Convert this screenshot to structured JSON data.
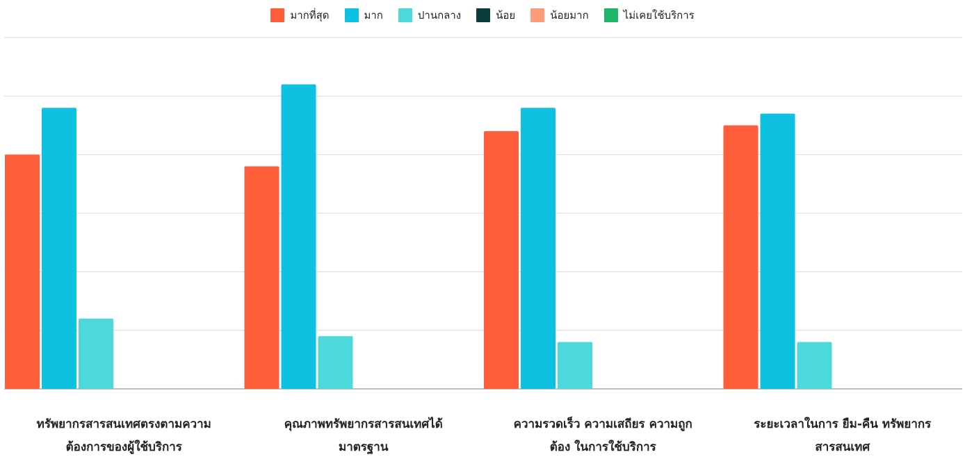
{
  "chart_data": {
    "type": "bar",
    "title": "",
    "xlabel": "",
    "ylabel": "",
    "ylim": [
      0,
      60
    ],
    "grid": true,
    "legend_position": "top-center",
    "categories": [
      "ทรัพยากรสารสนเทศตรงตามความต้องการของผู้ใช้บริการ",
      "คุณภาพทรัพยากรสารสนเทศได้มาตรฐาน",
      "ความรวดเร็ว ความเสถียร ความถูกต้อง ในการใช้บริการ",
      "ระยะเวลาในการ ยืม-คืน ทรัพยากรสารสนเทศ"
    ],
    "category_lines": [
      [
        "ทรัพยากรสารสนเทศตรงตามความ",
        "ต้องการของผู้ใช้บริการ"
      ],
      [
        "คุณภาพทรัพยากรสารสนเทศได้",
        "มาตรฐาน"
      ],
      [
        "ความรวดเร็ว ความเสถียร ความถูก",
        "ต้อง ในการใช้บริการ"
      ],
      [
        "ระยะเวลาในการ ยืม-คืน ทรัพยากร",
        "สารสนเทศ"
      ]
    ],
    "series": [
      {
        "name": "มากที่สุด",
        "color": "#FF5E3A",
        "values": [
          40,
          38,
          44,
          45
        ]
      },
      {
        "name": "มาก",
        "color": "#0FC1E0",
        "values": [
          48,
          52,
          48,
          47
        ]
      },
      {
        "name": "ปานกลาง",
        "color": "#4DD8DC",
        "values": [
          12,
          9,
          8,
          8
        ]
      },
      {
        "name": "น้อย",
        "color": "#0B3D3D",
        "values": [
          0,
          0,
          0,
          0
        ]
      },
      {
        "name": "น้อยมาก",
        "color": "#FF9A7A",
        "values": [
          0,
          0,
          0,
          0
        ]
      },
      {
        "name": "ไม่เคยใช้บริการ",
        "color": "#1DB56B",
        "values": [
          0,
          0,
          0,
          0
        ]
      }
    ]
  }
}
